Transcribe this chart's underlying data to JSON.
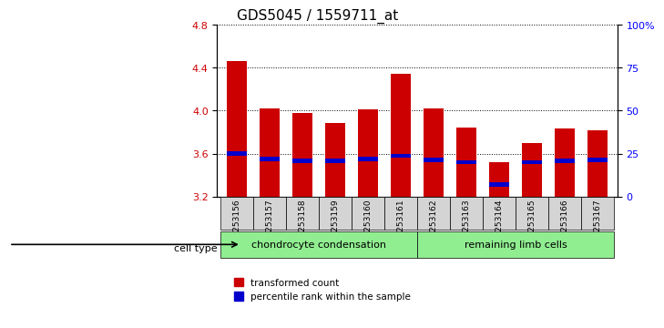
{
  "title": "GDS5045 / 1559711_at",
  "samples": [
    "GSM1253156",
    "GSM1253157",
    "GSM1253158",
    "GSM1253159",
    "GSM1253160",
    "GSM1253161",
    "GSM1253162",
    "GSM1253163",
    "GSM1253164",
    "GSM1253165",
    "GSM1253166",
    "GSM1253167"
  ],
  "red_values": [
    4.46,
    4.02,
    3.98,
    3.88,
    4.01,
    4.34,
    4.02,
    3.84,
    3.52,
    3.7,
    3.83,
    3.82
  ],
  "blue_values": [
    3.6,
    3.55,
    3.53,
    3.53,
    3.55,
    3.58,
    3.54,
    3.52,
    3.31,
    3.52,
    3.53,
    3.54
  ],
  "bar_base": 3.2,
  "ylim_left": [
    3.2,
    4.8
  ],
  "yticks_left": [
    3.2,
    3.6,
    4.0,
    4.4,
    4.8
  ],
  "yticks_right": [
    0,
    25,
    50,
    75,
    100
  ],
  "ylim_right": [
    0,
    100
  ],
  "group1_label": "chondrocyte condensation",
  "group2_label": "remaining limb cells",
  "group1_count": 6,
  "group2_count": 6,
  "cell_type_label": "cell type",
  "legend_red": "transformed count",
  "legend_blue": "percentile rank within the sample",
  "red_color": "#cc0000",
  "blue_color": "#0000cc",
  "grid_color": "#000000",
  "bg_plot": "#ffffff",
  "bg_sample": "#d4d4d4",
  "bg_group1": "#90ee90",
  "bg_group2": "#90ee90",
  "title_fontsize": 11,
  "tick_fontsize": 8,
  "label_fontsize": 8
}
